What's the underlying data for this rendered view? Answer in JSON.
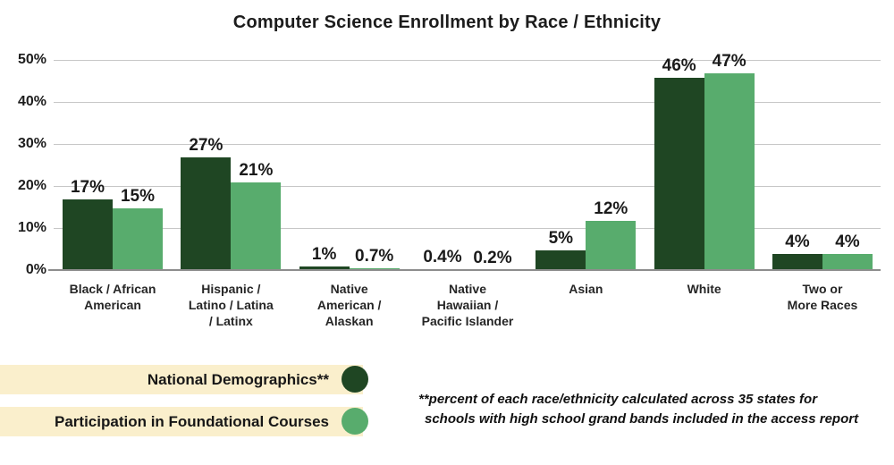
{
  "title": "Computer Science Enrollment by Race / Ethnicity",
  "chart_data": {
    "type": "bar",
    "title": "Computer Science Enrollment by Race / Ethnicity",
    "categories": [
      "Black / African American",
      "Hispanic / Latino / Latina / Latinx",
      "Native American / Alaskan",
      "Native Hawaiian / Pacific Islander",
      "Asian",
      "White",
      "Two or More Races"
    ],
    "category_display": [
      "Black / African\nAmerican",
      "Hispanic /\nLatino / Latina\n/ Latinx",
      "Native\nAmerican /\nAlaskan",
      "Native\nHawaiian /\nPacific Islander",
      "Asian",
      "White",
      "Two or\nMore Races"
    ],
    "series": [
      {
        "name": "National Demographics**",
        "color": "#1f4623",
        "values": [
          17,
          27,
          1,
          0.4,
          5,
          46,
          4
        ],
        "labels": [
          "17%",
          "27%",
          "1%",
          "0.4%",
          "5%",
          "46%",
          "4%"
        ]
      },
      {
        "name": "Participation in Foundational Courses",
        "color": "#58ac6d",
        "values": [
          15,
          21,
          0.7,
          0.2,
          12,
          47,
          4
        ],
        "labels": [
          "15%",
          "21%",
          "0.7%",
          "0.2%",
          "12%",
          "47%",
          "4%"
        ]
      }
    ],
    "y_axis": {
      "min": 0,
      "max": 50,
      "ticks": [
        "0%",
        "10%",
        "20%",
        "30%",
        "40%",
        "50%"
      ],
      "grid": true
    },
    "legend_position": "bottom-left"
  },
  "legend": {
    "items": [
      {
        "label": "National Demographics**",
        "color": "#1f4623"
      },
      {
        "label": "Participation in Foundational Courses",
        "color": "#58ac6d"
      }
    ],
    "background": "#faefcc"
  },
  "footnote": {
    "line1": "**percent of each race/ethnicity calculated across 35 states for",
    "line2": "schools with high school grand bands included in the access report"
  },
  "colors": {
    "dark_green": "#1f4623",
    "light_green": "#58ac6d",
    "legend_bg": "#faefcc",
    "gridline": "#c7c7c7",
    "axis_line": "#8d8d8d"
  }
}
